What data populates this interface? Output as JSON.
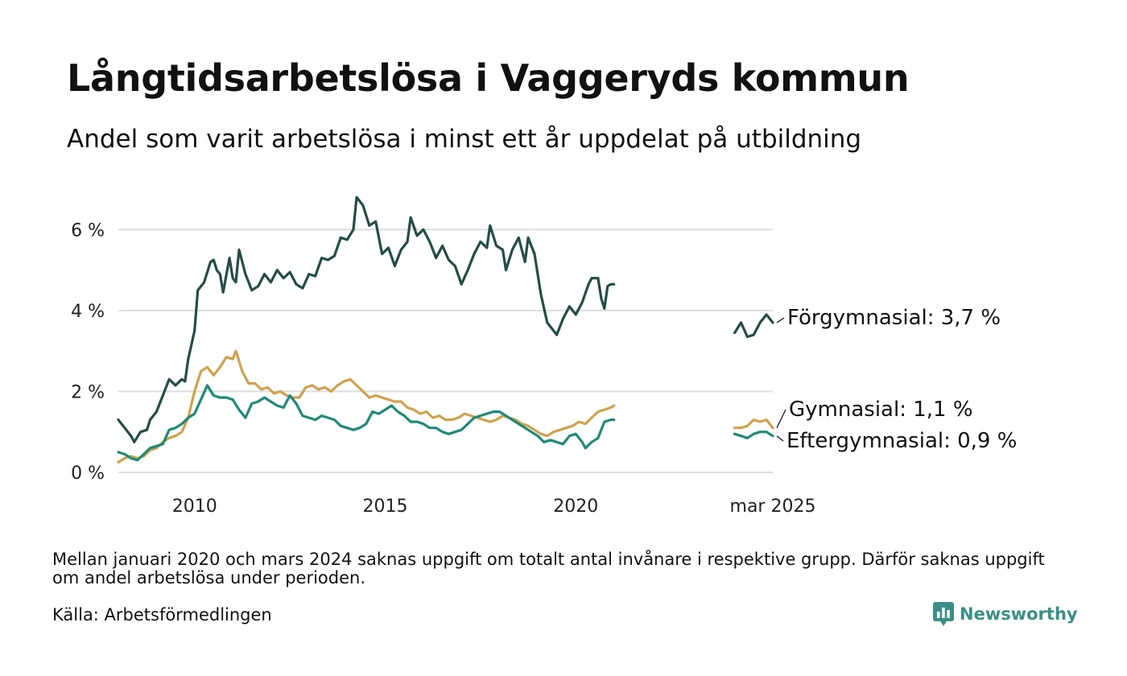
{
  "header": {
    "title": "Långtidsarbetslösa i Vaggeryds kommun",
    "subtitle": "Andel som varit arbetslösa i minst ett år uppdelat på utbildning"
  },
  "footer": {
    "note": "Mellan januari 2020 och mars 2024 saknas uppgift om totalt antal invånare i respektive grupp. Därför saknas uppgift om andel arbetslösa under perioden.",
    "source": "Källa: Arbetsförmedlingen",
    "brand": "Newsworthy",
    "brand_color": "#3a8f86"
  },
  "chart_data": {
    "type": "line",
    "title": "Långtidsarbetslösa i Vaggeryds kommun",
    "subtitle": "Andel som varit arbetslösa i minst ett år uppdelat på utbildning",
    "xlabel": "",
    "ylabel": "",
    "x_range": [
      "2008-01",
      "2025-03"
    ],
    "ylim": [
      0,
      7
    ],
    "y_ticks": [
      {
        "value": 0,
        "label": "0 %"
      },
      {
        "value": 2,
        "label": "2 %"
      },
      {
        "value": 4,
        "label": "4 %"
      },
      {
        "value": 6,
        "label": "6 %"
      }
    ],
    "x_ticks": [
      {
        "date": "2010-01",
        "label": "2010"
      },
      {
        "date": "2015-01",
        "label": "2015"
      },
      {
        "date": "2020-01",
        "label": "2020"
      },
      {
        "date": "2025-03",
        "label": "mar 2025"
      }
    ],
    "grid": "horizontal",
    "legend": "direct labels at line ends (right)",
    "gap": [
      "2021-01",
      "2024-03"
    ],
    "series": [
      {
        "name": "Förgymnasial",
        "end_label": "Förgymnasial: 3,7 %",
        "color": "#244d46",
        "points": [
          [
            "2008-01",
            1.3
          ],
          [
            "2008-03",
            1.1
          ],
          [
            "2008-05",
            0.9
          ],
          [
            "2008-06",
            0.75
          ],
          [
            "2008-08",
            1.0
          ],
          [
            "2008-10",
            1.05
          ],
          [
            "2008-11",
            1.3
          ],
          [
            "2009-01",
            1.5
          ],
          [
            "2009-03",
            1.9
          ],
          [
            "2009-05",
            2.3
          ],
          [
            "2009-07",
            2.15
          ],
          [
            "2009-09",
            2.3
          ],
          [
            "2009-10",
            2.25
          ],
          [
            "2009-11",
            2.8
          ],
          [
            "2010-01",
            3.5
          ],
          [
            "2010-02",
            4.5
          ],
          [
            "2010-04",
            4.7
          ],
          [
            "2010-06",
            5.2
          ],
          [
            "2010-07",
            5.25
          ],
          [
            "2010-08",
            5.0
          ],
          [
            "2010-09",
            4.9
          ],
          [
            "2010-10",
            4.45
          ],
          [
            "2010-12",
            5.3
          ],
          [
            "2011-01",
            4.8
          ],
          [
            "2011-02",
            4.7
          ],
          [
            "2011-03",
            5.5
          ],
          [
            "2011-05",
            4.9
          ],
          [
            "2011-07",
            4.5
          ],
          [
            "2011-09",
            4.6
          ],
          [
            "2011-11",
            4.9
          ],
          [
            "2012-01",
            4.7
          ],
          [
            "2012-03",
            5.0
          ],
          [
            "2012-05",
            4.8
          ],
          [
            "2012-07",
            4.95
          ],
          [
            "2012-09",
            4.65
          ],
          [
            "2012-11",
            4.55
          ],
          [
            "2013-01",
            4.9
          ],
          [
            "2013-03",
            4.85
          ],
          [
            "2013-05",
            5.3
          ],
          [
            "2013-07",
            5.25
          ],
          [
            "2013-09",
            5.35
          ],
          [
            "2013-11",
            5.8
          ],
          [
            "2014-01",
            5.75
          ],
          [
            "2014-03",
            6.0
          ],
          [
            "2014-04",
            6.8
          ],
          [
            "2014-06",
            6.6
          ],
          [
            "2014-08",
            6.1
          ],
          [
            "2014-10",
            6.2
          ],
          [
            "2014-12",
            5.4
          ],
          [
            "2015-02",
            5.55
          ],
          [
            "2015-04",
            5.1
          ],
          [
            "2015-06",
            5.5
          ],
          [
            "2015-08",
            5.7
          ],
          [
            "2015-09",
            6.3
          ],
          [
            "2015-11",
            5.85
          ],
          [
            "2016-01",
            6.0
          ],
          [
            "2016-03",
            5.7
          ],
          [
            "2016-05",
            5.3
          ],
          [
            "2016-07",
            5.6
          ],
          [
            "2016-09",
            5.25
          ],
          [
            "2016-11",
            5.1
          ],
          [
            "2017-01",
            4.65
          ],
          [
            "2017-03",
            5.0
          ],
          [
            "2017-05",
            5.4
          ],
          [
            "2017-07",
            5.7
          ],
          [
            "2017-09",
            5.55
          ],
          [
            "2017-10",
            6.1
          ],
          [
            "2017-12",
            5.6
          ],
          [
            "2018-02",
            5.5
          ],
          [
            "2018-03",
            5.0
          ],
          [
            "2018-05",
            5.5
          ],
          [
            "2018-07",
            5.8
          ],
          [
            "2018-09",
            5.2
          ],
          [
            "2018-10",
            5.8
          ],
          [
            "2018-12",
            5.4
          ],
          [
            "2019-02",
            4.4
          ],
          [
            "2019-04",
            3.7
          ],
          [
            "2019-06",
            3.5
          ],
          [
            "2019-07",
            3.4
          ],
          [
            "2019-09",
            3.8
          ],
          [
            "2019-11",
            4.1
          ],
          [
            "2020-01",
            3.9
          ],
          [
            "2020-03",
            4.2
          ],
          [
            "2020-05",
            4.65
          ],
          [
            "2020-06",
            4.8
          ],
          [
            "2020-08",
            4.8
          ],
          [
            "2020-09",
            4.3
          ],
          [
            "2020-10",
            4.05
          ],
          [
            "2020-11",
            4.6
          ],
          [
            "2020-12",
            4.65
          ],
          [
            "2021-01",
            4.65
          ],
          [
            "2024-03",
            3.45
          ],
          [
            "2024-05",
            3.7
          ],
          [
            "2024-07",
            3.35
          ],
          [
            "2024-09",
            3.4
          ],
          [
            "2024-11",
            3.7
          ],
          [
            "2025-01",
            3.9
          ],
          [
            "2025-03",
            3.7
          ]
        ]
      },
      {
        "name": "Gymnasial",
        "end_label": "Gymnasial: 1,1 %",
        "color": "#cfa24c",
        "points": [
          [
            "2008-01",
            0.25
          ],
          [
            "2008-03",
            0.35
          ],
          [
            "2008-05",
            0.4
          ],
          [
            "2008-07",
            0.35
          ],
          [
            "2008-09",
            0.4
          ],
          [
            "2008-11",
            0.55
          ],
          [
            "2009-01",
            0.6
          ],
          [
            "2009-03",
            0.75
          ],
          [
            "2009-05",
            0.85
          ],
          [
            "2009-07",
            0.9
          ],
          [
            "2009-09",
            1.0
          ],
          [
            "2009-11",
            1.35
          ],
          [
            "2010-01",
            2.0
          ],
          [
            "2010-03",
            2.5
          ],
          [
            "2010-05",
            2.6
          ],
          [
            "2010-07",
            2.4
          ],
          [
            "2010-09",
            2.6
          ],
          [
            "2010-11",
            2.85
          ],
          [
            "2011-01",
            2.8
          ],
          [
            "2011-02",
            3.0
          ],
          [
            "2011-04",
            2.5
          ],
          [
            "2011-06",
            2.2
          ],
          [
            "2011-08",
            2.2
          ],
          [
            "2011-10",
            2.05
          ],
          [
            "2011-12",
            2.1
          ],
          [
            "2012-02",
            1.95
          ],
          [
            "2012-04",
            2.0
          ],
          [
            "2012-06",
            1.9
          ],
          [
            "2012-08",
            1.85
          ],
          [
            "2012-10",
            1.85
          ],
          [
            "2012-12",
            2.1
          ],
          [
            "2013-02",
            2.15
          ],
          [
            "2013-04",
            2.05
          ],
          [
            "2013-06",
            2.1
          ],
          [
            "2013-08",
            2.0
          ],
          [
            "2013-10",
            2.15
          ],
          [
            "2013-12",
            2.25
          ],
          [
            "2014-02",
            2.3
          ],
          [
            "2014-04",
            2.15
          ],
          [
            "2014-06",
            2.0
          ],
          [
            "2014-08",
            1.85
          ],
          [
            "2014-10",
            1.9
          ],
          [
            "2014-12",
            1.85
          ],
          [
            "2015-02",
            1.8
          ],
          [
            "2015-04",
            1.75
          ],
          [
            "2015-06",
            1.75
          ],
          [
            "2015-08",
            1.6
          ],
          [
            "2015-10",
            1.55
          ],
          [
            "2015-12",
            1.45
          ],
          [
            "2016-02",
            1.5
          ],
          [
            "2016-04",
            1.35
          ],
          [
            "2016-06",
            1.4
          ],
          [
            "2016-08",
            1.3
          ],
          [
            "2016-10",
            1.3
          ],
          [
            "2016-12",
            1.35
          ],
          [
            "2017-02",
            1.45
          ],
          [
            "2017-04",
            1.4
          ],
          [
            "2017-06",
            1.35
          ],
          [
            "2017-08",
            1.3
          ],
          [
            "2017-10",
            1.25
          ],
          [
            "2017-12",
            1.3
          ],
          [
            "2018-02",
            1.4
          ],
          [
            "2018-04",
            1.35
          ],
          [
            "2018-06",
            1.3
          ],
          [
            "2018-08",
            1.2
          ],
          [
            "2018-10",
            1.15
          ],
          [
            "2018-12",
            1.05
          ],
          [
            "2019-02",
            0.95
          ],
          [
            "2019-04",
            0.9
          ],
          [
            "2019-06",
            1.0
          ],
          [
            "2019-08",
            1.05
          ],
          [
            "2019-10",
            1.1
          ],
          [
            "2019-12",
            1.15
          ],
          [
            "2020-02",
            1.25
          ],
          [
            "2020-04",
            1.2
          ],
          [
            "2020-06",
            1.35
          ],
          [
            "2020-08",
            1.5
          ],
          [
            "2020-10",
            1.55
          ],
          [
            "2020-12",
            1.6
          ],
          [
            "2021-01",
            1.65
          ],
          [
            "2024-03",
            1.1
          ],
          [
            "2024-05",
            1.1
          ],
          [
            "2024-07",
            1.15
          ],
          [
            "2024-09",
            1.3
          ],
          [
            "2024-11",
            1.25
          ],
          [
            "2025-01",
            1.3
          ],
          [
            "2025-03",
            1.1
          ]
        ]
      },
      {
        "name": "Eftergymnasial",
        "end_label": "Eftergymnasial: 0,9 %",
        "color": "#1f8a78",
        "points": [
          [
            "2008-01",
            0.5
          ],
          [
            "2008-03",
            0.45
          ],
          [
            "2008-05",
            0.35
          ],
          [
            "2008-07",
            0.3
          ],
          [
            "2008-09",
            0.45
          ],
          [
            "2008-11",
            0.6
          ],
          [
            "2009-01",
            0.65
          ],
          [
            "2009-03",
            0.7
          ],
          [
            "2009-05",
            1.05
          ],
          [
            "2009-07",
            1.1
          ],
          [
            "2009-09",
            1.2
          ],
          [
            "2009-11",
            1.35
          ],
          [
            "2010-01",
            1.45
          ],
          [
            "2010-03",
            1.8
          ],
          [
            "2010-05",
            2.15
          ],
          [
            "2010-07",
            1.9
          ],
          [
            "2010-09",
            1.85
          ],
          [
            "2010-11",
            1.85
          ],
          [
            "2011-01",
            1.8
          ],
          [
            "2011-03",
            1.55
          ],
          [
            "2011-05",
            1.35
          ],
          [
            "2011-07",
            1.7
          ],
          [
            "2011-09",
            1.75
          ],
          [
            "2011-11",
            1.85
          ],
          [
            "2012-01",
            1.75
          ],
          [
            "2012-03",
            1.65
          ],
          [
            "2012-05",
            1.6
          ],
          [
            "2012-07",
            1.9
          ],
          [
            "2012-09",
            1.7
          ],
          [
            "2012-11",
            1.4
          ],
          [
            "2013-01",
            1.35
          ],
          [
            "2013-03",
            1.3
          ],
          [
            "2013-05",
            1.4
          ],
          [
            "2013-07",
            1.35
          ],
          [
            "2013-09",
            1.3
          ],
          [
            "2013-11",
            1.15
          ],
          [
            "2014-01",
            1.1
          ],
          [
            "2014-03",
            1.05
          ],
          [
            "2014-05",
            1.1
          ],
          [
            "2014-07",
            1.2
          ],
          [
            "2014-09",
            1.5
          ],
          [
            "2014-11",
            1.45
          ],
          [
            "2015-01",
            1.55
          ],
          [
            "2015-03",
            1.65
          ],
          [
            "2015-05",
            1.5
          ],
          [
            "2015-07",
            1.4
          ],
          [
            "2015-09",
            1.25
          ],
          [
            "2015-11",
            1.25
          ],
          [
            "2016-01",
            1.2
          ],
          [
            "2016-03",
            1.1
          ],
          [
            "2016-05",
            1.1
          ],
          [
            "2016-07",
            1.0
          ],
          [
            "2016-09",
            0.95
          ],
          [
            "2016-11",
            1.0
          ],
          [
            "2017-01",
            1.05
          ],
          [
            "2017-03",
            1.2
          ],
          [
            "2017-05",
            1.35
          ],
          [
            "2017-07",
            1.4
          ],
          [
            "2017-09",
            1.45
          ],
          [
            "2017-11",
            1.5
          ],
          [
            "2018-01",
            1.5
          ],
          [
            "2018-03",
            1.4
          ],
          [
            "2018-05",
            1.3
          ],
          [
            "2018-07",
            1.2
          ],
          [
            "2018-09",
            1.1
          ],
          [
            "2018-11",
            1.0
          ],
          [
            "2019-01",
            0.9
          ],
          [
            "2019-03",
            0.75
          ],
          [
            "2019-05",
            0.8
          ],
          [
            "2019-07",
            0.75
          ],
          [
            "2019-09",
            0.7
          ],
          [
            "2019-11",
            0.9
          ],
          [
            "2020-01",
            0.95
          ],
          [
            "2020-03",
            0.75
          ],
          [
            "2020-04",
            0.6
          ],
          [
            "2020-06",
            0.75
          ],
          [
            "2020-08",
            0.85
          ],
          [
            "2020-10",
            1.25
          ],
          [
            "2020-12",
            1.3
          ],
          [
            "2021-01",
            1.3
          ],
          [
            "2024-03",
            0.95
          ],
          [
            "2024-05",
            0.9
          ],
          [
            "2024-07",
            0.85
          ],
          [
            "2024-09",
            0.95
          ],
          [
            "2024-11",
            1.0
          ],
          [
            "2025-01",
            1.0
          ],
          [
            "2025-03",
            0.9
          ]
        ]
      }
    ]
  }
}
